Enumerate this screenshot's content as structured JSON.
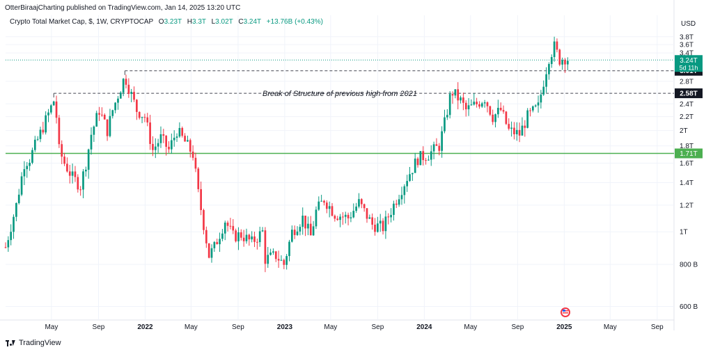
{
  "header": {
    "published_by": "OtterBiraajCharting published on TradingView.com, Jan 14, 2025 13:20 UTC"
  },
  "legend": {
    "symbol": "Crypto Total Market Cap, $, 1W, CRYPTOCAP",
    "open_label": "O",
    "open": "3.23T",
    "high_label": "H",
    "high": "3.3T",
    "low_label": "L",
    "low": "3.02T",
    "close_label": "C",
    "close": "3.24T",
    "change": "+13.76B (+0.43%)"
  },
  "branding": {
    "name": "TradingView"
  },
  "colors": {
    "up": "#089981",
    "down": "#f23645",
    "support_line": "#4caf50",
    "current_price": "#089981",
    "level_tag": "#131722",
    "grid": "#f0f3fa",
    "axis_text": "#131722"
  },
  "chart_data": {
    "type": "candlestick",
    "interval": "1W",
    "currency_label": "USD",
    "y_scale": "log",
    "ylim": [
      560000000000,
      4000000000000
    ],
    "y_ticks": [
      {
        "label": "3.8T",
        "value": 3.8
      },
      {
        "label": "3.6T",
        "value": 3.6
      },
      {
        "label": "3.4T",
        "value": 3.4
      },
      {
        "label": "2.8T",
        "value": 2.8
      },
      {
        "label": "2.4T",
        "value": 2.4
      },
      {
        "label": "2.2T",
        "value": 2.2
      },
      {
        "label": "2T",
        "value": 2.0
      },
      {
        "label": "1.8T",
        "value": 1.8
      },
      {
        "label": "1.6T",
        "value": 1.6
      },
      {
        "label": "1.4T",
        "value": 1.4
      },
      {
        "label": "1.2T",
        "value": 1.2
      },
      {
        "label": "1T",
        "value": 1.0
      },
      {
        "label": "800 B",
        "value": 0.8
      },
      {
        "label": "600 B",
        "value": 0.6
      }
    ],
    "x_ticks": [
      {
        "label": "May",
        "date": "2021-05-01",
        "bold": false
      },
      {
        "label": "Sep",
        "date": "2021-09-01",
        "bold": false
      },
      {
        "label": "2022",
        "date": "2022-01-01",
        "bold": true
      },
      {
        "label": "May",
        "date": "2022-05-01",
        "bold": false
      },
      {
        "label": "Sep",
        "date": "2022-09-01",
        "bold": false
      },
      {
        "label": "2023",
        "date": "2023-01-01",
        "bold": true
      },
      {
        "label": "May",
        "date": "2023-05-01",
        "bold": false
      },
      {
        "label": "Sep",
        "date": "2023-09-01",
        "bold": false
      },
      {
        "label": "2024",
        "date": "2024-01-01",
        "bold": true
      },
      {
        "label": "May",
        "date": "2024-05-01",
        "bold": false
      },
      {
        "label": "Sep",
        "date": "2024-09-01",
        "bold": false
      },
      {
        "label": "2025",
        "date": "2025-01-01",
        "bold": true
      },
      {
        "label": "May",
        "date": "2025-05-01",
        "bold": false
      },
      {
        "label": "Sep",
        "date": "2025-09-01",
        "bold": false
      }
    ],
    "price_points_trillions": [
      [
        "2021-01-01",
        0.9
      ],
      [
        "2021-01-29",
        1.2
      ],
      [
        "2021-02-19",
        1.6
      ],
      [
        "2021-03-05",
        1.65
      ],
      [
        "2021-04-01",
        1.95
      ],
      [
        "2021-05-07",
        2.45
      ],
      [
        "2021-05-14",
        2.2
      ],
      [
        "2021-05-21",
        1.75
      ],
      [
        "2021-06-04",
        1.6
      ],
      [
        "2021-06-25",
        1.45
      ],
      [
        "2021-07-16",
        1.37
      ],
      [
        "2021-07-30",
        1.6
      ],
      [
        "2021-08-13",
        1.95
      ],
      [
        "2021-09-03",
        2.3
      ],
      [
        "2021-09-24",
        2.0
      ],
      [
        "2021-10-08",
        2.3
      ],
      [
        "2021-10-22",
        2.55
      ],
      [
        "2021-11-09",
        2.9
      ],
      [
        "2021-11-26",
        2.55
      ],
      [
        "2021-12-10",
        2.3
      ],
      [
        "2021-12-31",
        2.2
      ],
      [
        "2022-01-21",
        1.75
      ],
      [
        "2022-02-11",
        1.9
      ],
      [
        "2022-03-04",
        1.75
      ],
      [
        "2022-03-25",
        2.0
      ],
      [
        "2022-04-15",
        1.85
      ],
      [
        "2022-05-06",
        1.7
      ],
      [
        "2022-05-20",
        1.3
      ],
      [
        "2022-06-17",
        0.85
      ],
      [
        "2022-07-01",
        0.9
      ],
      [
        "2022-07-29",
        1.08
      ],
      [
        "2022-08-19",
        0.97
      ],
      [
        "2022-09-09",
        0.98
      ],
      [
        "2022-10-07",
        0.93
      ],
      [
        "2022-11-04",
        1.0
      ],
      [
        "2022-11-11",
        0.83
      ],
      [
        "2022-12-09",
        0.85
      ],
      [
        "2022-12-30",
        0.8
      ],
      [
        "2023-01-20",
        1.0
      ],
      [
        "2023-02-17",
        1.1
      ],
      [
        "2023-03-10",
        0.97
      ],
      [
        "2023-03-24",
        1.15
      ],
      [
        "2023-04-14",
        1.25
      ],
      [
        "2023-05-12",
        1.13
      ],
      [
        "2023-06-16",
        1.1
      ],
      [
        "2023-07-14",
        1.22
      ],
      [
        "2023-08-18",
        1.05
      ],
      [
        "2023-09-15",
        1.03
      ],
      [
        "2023-10-20",
        1.25
      ],
      [
        "2023-11-17",
        1.45
      ],
      [
        "2023-12-15",
        1.65
      ],
      [
        "2024-01-12",
        1.7
      ],
      [
        "2024-02-09",
        1.8
      ],
      [
        "2024-02-23",
        2.1
      ],
      [
        "2024-03-08",
        2.5
      ],
      [
        "2024-03-15",
        2.6
      ],
      [
        "2024-04-05",
        2.45
      ],
      [
        "2024-04-19",
        2.3
      ],
      [
        "2024-05-17",
        2.4
      ],
      [
        "2024-06-07",
        2.5
      ],
      [
        "2024-06-28",
        2.2
      ],
      [
        "2024-07-19",
        2.3
      ],
      [
        "2024-08-09",
        2.0
      ],
      [
        "2024-09-06",
        1.95
      ],
      [
        "2024-09-27",
        2.2
      ],
      [
        "2024-10-25",
        2.35
      ],
      [
        "2024-11-08",
        2.8
      ],
      [
        "2024-11-22",
        3.3
      ],
      [
        "2024-12-06",
        3.55
      ],
      [
        "2024-12-20",
        3.25
      ],
      [
        "2025-01-06",
        3.3
      ],
      [
        "2025-01-13",
        3.24
      ]
    ],
    "horizontal_levels": [
      {
        "value_trillions": 3.01,
        "label": "3.01T",
        "style": "dashed",
        "start": "2021-11-09"
      },
      {
        "value_trillions": 2.58,
        "label": "2.58T",
        "style": "dashed",
        "start": "2021-05-07"
      },
      {
        "value_trillions": 1.71,
        "label": "1.71T",
        "style": "solid-green",
        "start": "2021-01-01"
      }
    ],
    "current_price": {
      "value_trillions": 3.24,
      "label": "3.24T",
      "countdown": "5d 11h"
    },
    "annotation": "Break of Structure of previous high from 2021"
  }
}
